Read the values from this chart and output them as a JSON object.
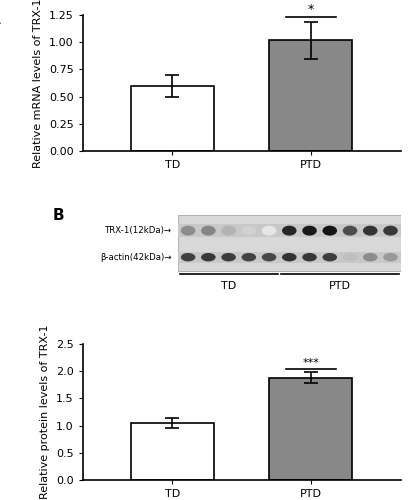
{
  "panel_A": {
    "categories": [
      "TD",
      "PTD"
    ],
    "values": [
      0.6,
      1.02
    ],
    "errors": [
      0.1,
      0.17
    ],
    "bar_colors": [
      "white",
      "#888888"
    ],
    "bar_edgecolors": [
      "black",
      "black"
    ],
    "ylim": [
      0,
      1.25
    ],
    "yticks": [
      0,
      0.25,
      0.5,
      0.75,
      1.0,
      1.25
    ],
    "ylabel": "Relative mRNA levels of TRX-1",
    "significance": "*",
    "label": "A"
  },
  "panel_B_bar": {
    "categories": [
      "TD",
      "PTD"
    ],
    "values": [
      1.05,
      1.88
    ],
    "errors": [
      0.09,
      0.1
    ],
    "bar_colors": [
      "white",
      "#888888"
    ],
    "bar_edgecolors": [
      "black",
      "black"
    ],
    "ylim": [
      0,
      2.5
    ],
    "yticks": [
      0,
      0.5,
      1.0,
      1.5,
      2.0,
      2.5
    ],
    "ylabel": "Relative protein levels of TRX-1",
    "significance": "***",
    "label": "B"
  },
  "wb_label1": "TRX-1(12kDa)→",
  "wb_label2": "β-actin(42kDa)→",
  "wb_td_label": "TD",
  "wb_ptd_label": "PTD",
  "bg_color": "white",
  "axis_linewidth": 1.2,
  "bar_linewidth": 1.2,
  "font_size": 8
}
